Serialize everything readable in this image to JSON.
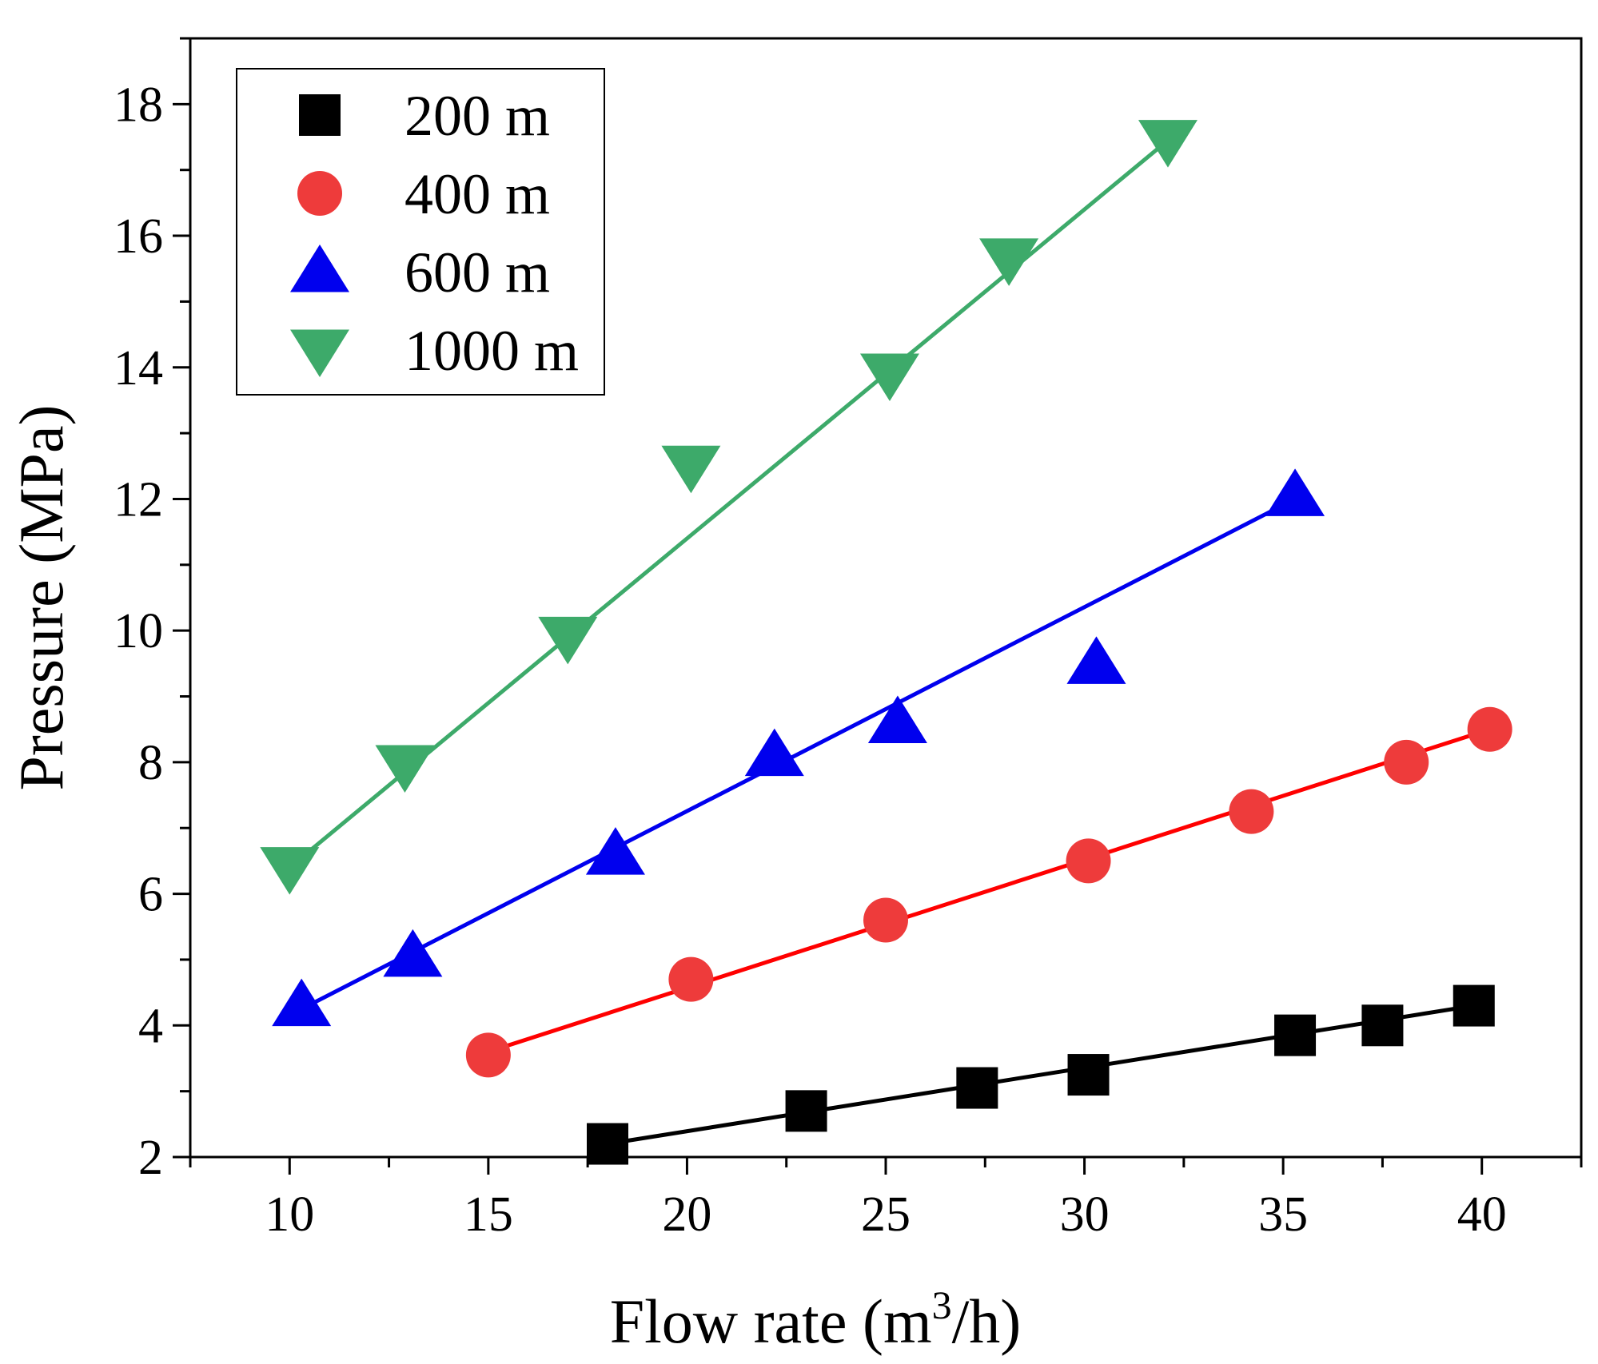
{
  "chart_data": {
    "type": "scatter",
    "title": "",
    "xlabel": "Flow rate (m",
    "xlabel_sup": "3",
    "xlabel_tail": "/h)",
    "ylabel": "Pressure (MPa)",
    "xlim": [
      7.5,
      42.5
    ],
    "ylim": [
      2,
      19
    ],
    "xticks": [
      10,
      15,
      20,
      25,
      30,
      35,
      40
    ],
    "yticks": [
      2,
      4,
      6,
      8,
      10,
      12,
      14,
      16,
      18
    ],
    "legend_position": "top-left",
    "series": [
      {
        "name": "200 m",
        "label": "200 m",
        "marker": "square",
        "color": "#000000",
        "x": [
          18,
          23,
          27.3,
          30.1,
          35.3,
          37.5,
          39.8
        ],
        "y": [
          2.2,
          2.7,
          3.05,
          3.25,
          3.85,
          4.0,
          4.3
        ],
        "fit": {
          "x": [
            18,
            39.8
          ],
          "y": [
            2.2,
            4.3
          ]
        }
      },
      {
        "name": "400 m",
        "label": "400 m",
        "marker": "circle",
        "color": "#ee3b3b",
        "line_color": "#ff0000",
        "x": [
          15,
          20.1,
          25,
          30.1,
          34.2,
          38.1,
          40.2
        ],
        "y": [
          3.55,
          4.7,
          5.6,
          6.5,
          7.25,
          8.0,
          8.5
        ],
        "fit": {
          "x": [
            15,
            40.2
          ],
          "y": [
            3.6,
            8.5
          ]
        }
      },
      {
        "name": "600 m",
        "label": "600 m",
        "marker": "triangle-up",
        "color": "#0000ee",
        "x": [
          10.3,
          13.1,
          18.2,
          22.2,
          25.3,
          30.3,
          35.3
        ],
        "y": [
          4.3,
          5.05,
          6.6,
          8.1,
          8.6,
          9.5,
          12.05
        ],
        "fit": {
          "x": [
            10.3,
            35.3
          ],
          "y": [
            4.25,
            12.0
          ]
        }
      },
      {
        "name": "1000 m",
        "label": "1000 m",
        "marker": "triangle-down",
        "color": "#3daa6a",
        "x": [
          10,
          12.9,
          17.0,
          20.1,
          25.1,
          28.1,
          32.1
        ],
        "y": [
          6.4,
          7.95,
          9.9,
          12.5,
          13.9,
          15.65,
          17.45
        ],
        "fit": {
          "x": [
            10,
            32.1
          ],
          "y": [
            6.4,
            17.45
          ]
        }
      }
    ]
  }
}
